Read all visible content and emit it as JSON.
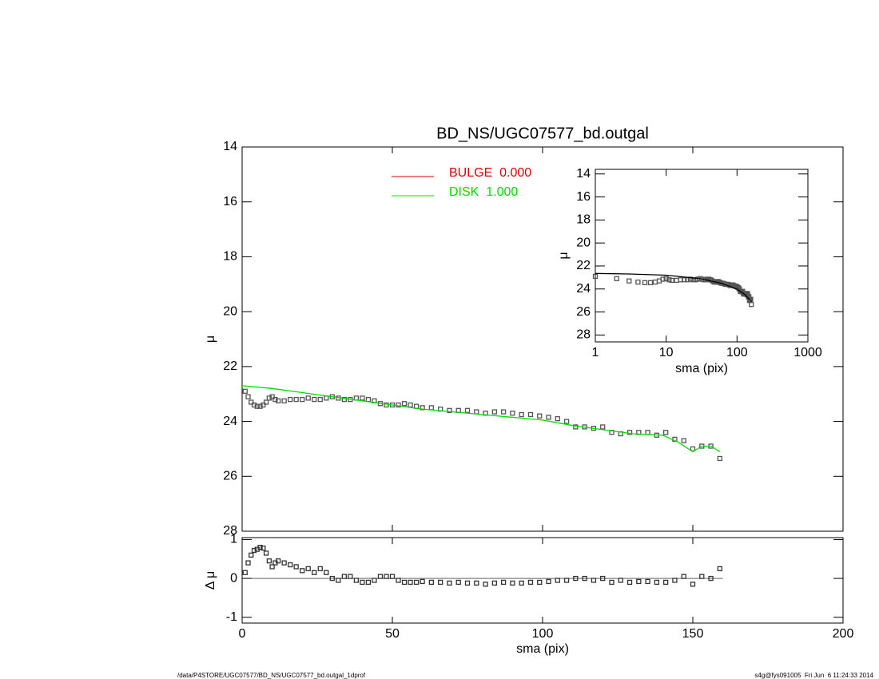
{
  "chart_data": [
    {
      "type": "scatter",
      "title": "BD_NS/UGC07577_bd.outgal",
      "ylabel": "μ",
      "xlim": [
        0,
        200
      ],
      "xticks": [
        0,
        50,
        100,
        150,
        200
      ],
      "ylim": [
        28,
        14
      ],
      "yticks": [
        14,
        16,
        18,
        20,
        22,
        24,
        26,
        28
      ],
      "legend": [
        {
          "name": "BULGE  0.000",
          "color": "#e00000"
        },
        {
          "name": "DISK  1.000",
          "color": "#00dd00"
        }
      ],
      "series": [
        {
          "style": "marker",
          "color": "#555555",
          "x": [
            1,
            2,
            3,
            4,
            5,
            6,
            7,
            8,
            9,
            10,
            11,
            12,
            14,
            16,
            18,
            20,
            22,
            24,
            26,
            28,
            30,
            32,
            34,
            36,
            38,
            40,
            42,
            44,
            46,
            48,
            50,
            52,
            54,
            56,
            58,
            60,
            63,
            66,
            69,
            72,
            75,
            78,
            81,
            84,
            87,
            90,
            93,
            96,
            99,
            102,
            105,
            108,
            111,
            114,
            117,
            120,
            123,
            126,
            129,
            132,
            135,
            138,
            141,
            144,
            147,
            150,
            153,
            156,
            159
          ],
          "values": [
            22.9,
            23.1,
            23.3,
            23.4,
            23.45,
            23.45,
            23.4,
            23.3,
            23.15,
            23.1,
            23.2,
            23.25,
            23.25,
            23.2,
            23.2,
            23.2,
            23.15,
            23.2,
            23.2,
            23.15,
            23.1,
            23.15,
            23.2,
            23.2,
            23.15,
            23.15,
            23.2,
            23.25,
            23.35,
            23.4,
            23.4,
            23.4,
            23.35,
            23.4,
            23.45,
            23.5,
            23.5,
            23.55,
            23.6,
            23.6,
            23.6,
            23.65,
            23.7,
            23.65,
            23.65,
            23.7,
            23.75,
            23.75,
            23.8,
            23.85,
            23.9,
            24.0,
            24.2,
            24.2,
            24.25,
            24.2,
            24.4,
            24.45,
            24.4,
            24.4,
            24.4,
            24.5,
            24.4,
            24.65,
            24.7,
            25.0,
            24.9,
            24.9,
            25.35
          ]
        },
        {
          "style": "line",
          "color": "#00dd00",
          "x": [
            0,
            10,
            20,
            30,
            40,
            50,
            60,
            70,
            80,
            90,
            100,
            110,
            120,
            130,
            140,
            145,
            150,
            153,
            156,
            159
          ],
          "values": [
            22.7,
            22.8,
            22.95,
            23.1,
            23.25,
            23.4,
            23.55,
            23.65,
            23.75,
            23.85,
            23.95,
            24.15,
            24.3,
            24.45,
            24.5,
            24.75,
            25.1,
            24.9,
            24.9,
            25.1
          ]
        }
      ]
    },
    {
      "type": "scatter",
      "xlabel": "sma (pix)",
      "ylabel": "Δ μ",
      "xlim": [
        0,
        200
      ],
      "xticks": [
        0,
        50,
        100,
        150,
        200
      ],
      "ylim": [
        -1.15,
        1.05
      ],
      "yticks": [
        -1,
        0,
        1
      ],
      "series": [
        {
          "style": "marker",
          "color": "#333333",
          "x": [
            1,
            2,
            3,
            4,
            5,
            6,
            7,
            8,
            9,
            10,
            11,
            12,
            14,
            16,
            18,
            20,
            22,
            24,
            26,
            28,
            30,
            32,
            34,
            36,
            38,
            40,
            42,
            44,
            46,
            48,
            50,
            52,
            54,
            56,
            58,
            60,
            63,
            66,
            69,
            72,
            75,
            78,
            81,
            84,
            87,
            90,
            93,
            96,
            99,
            102,
            105,
            108,
            111,
            114,
            117,
            120,
            123,
            126,
            129,
            132,
            135,
            138,
            141,
            144,
            147,
            150,
            153,
            156,
            159
          ],
          "values": [
            0.15,
            0.4,
            0.6,
            0.72,
            0.75,
            0.8,
            0.78,
            0.65,
            0.45,
            0.3,
            0.4,
            0.45,
            0.4,
            0.35,
            0.3,
            0.2,
            0.25,
            0.15,
            0.25,
            0.15,
            0.0,
            -0.05,
            0.05,
            0.05,
            -0.05,
            -0.1,
            -0.1,
            -0.05,
            0.05,
            0.05,
            0.05,
            -0.05,
            -0.1,
            -0.1,
            -0.1,
            -0.08,
            -0.1,
            -0.1,
            -0.12,
            -0.1,
            -0.12,
            -0.12,
            -0.15,
            -0.12,
            -0.1,
            -0.12,
            -0.12,
            -0.1,
            -0.1,
            -0.08,
            -0.05,
            -0.05,
            0.0,
            0.0,
            -0.05,
            0.0,
            -0.1,
            -0.05,
            -0.1,
            -0.08,
            -0.08,
            -0.1,
            -0.1,
            -0.05,
            0.05,
            -0.15,
            0.05,
            0.0,
            0.25
          ]
        }
      ]
    },
    {
      "type": "scatter",
      "xlabel": "sma (pix)",
      "ylabel": "μ",
      "xlog": true,
      "xlim": [
        1,
        1000
      ],
      "xticks": [
        1,
        10,
        100,
        1000
      ],
      "ylim": [
        28.6,
        13.6
      ],
      "yticks": [
        14,
        16,
        18,
        20,
        22,
        24,
        26,
        28
      ],
      "series": [
        {
          "style": "line",
          "color": "#000000",
          "x": [
            1,
            3,
            10,
            30,
            60,
            100,
            130,
            160
          ],
          "values": [
            22.65,
            22.7,
            22.8,
            23.1,
            23.5,
            24.0,
            24.5,
            25.1
          ]
        }
      ]
    }
  ],
  "footer": {
    "left": "/data/P4STORE/UGC07577/BD_NS/UGC07577_bd.outgal_1dprof",
    "right": "s4g@fys091005  Fri Jun  6 11:24:33 2014"
  }
}
